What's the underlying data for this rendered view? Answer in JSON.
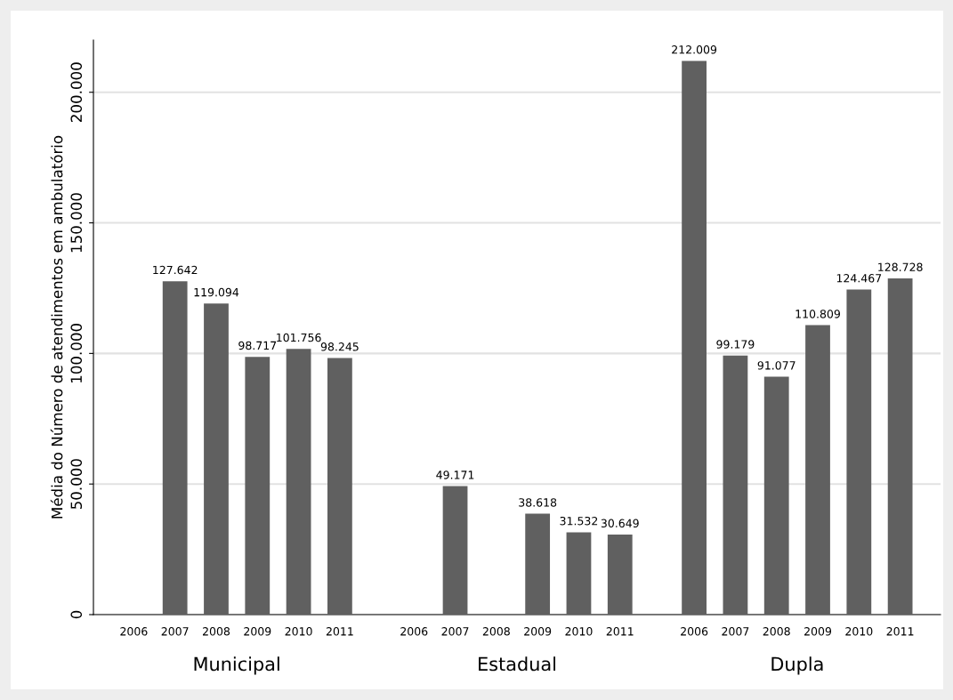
{
  "chart_data": {
    "type": "bar",
    "ylabel": "Média do Número de atendimentos em ambulatório",
    "categories": [
      "2006",
      "2007",
      "2008",
      "2009",
      "2010",
      "2011",
      "2006",
      "2007",
      "2008",
      "2009",
      "2010",
      "2011",
      "2006",
      "2007",
      "2008",
      "2009",
      "2010",
      "2011"
    ],
    "values": [
      null,
      127642,
      119094,
      98717,
      101756,
      98245,
      null,
      49171,
      null,
      38618,
      31532,
      30649,
      212009,
      99179,
      91077,
      110809,
      124467,
      128728
    ],
    "value_labels": [
      null,
      "127.642",
      "119.094",
      "98.717",
      "101.756",
      "98.245",
      null,
      "49.171",
      null,
      "38.618",
      "31.532",
      "30.649",
      "212.009",
      "99.179",
      "91.077",
      "110.809",
      "124.467",
      "128.728"
    ],
    "color": "#606060",
    "annotations": [
      "Municipal",
      "Estadual",
      "Dupla"
    ],
    "ylim": [
      0,
      220000
    ],
    "yticks": [
      {
        "value": 0,
        "label": "0"
      },
      {
        "value": 50000,
        "label": "50.000"
      },
      {
        "value": 100000,
        "label": "100.000"
      },
      {
        "value": 150000,
        "label": "150.000"
      },
      {
        "value": 200000,
        "label": "200.000"
      }
    ],
    "grid": "y"
  }
}
